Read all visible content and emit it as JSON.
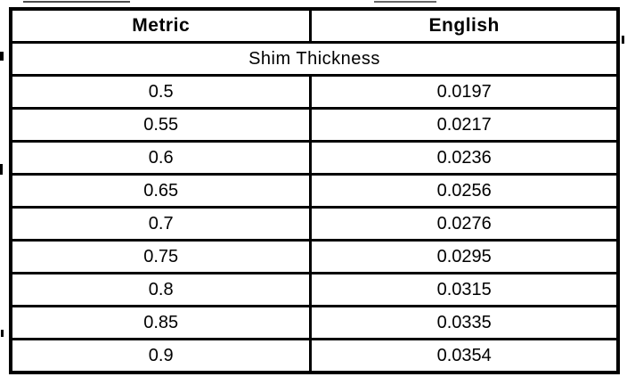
{
  "document": {
    "table": {
      "columns": [
        "Metric",
        "English"
      ],
      "section_title": "Shim Thickness",
      "rows": [
        {
          "metric": "0.5",
          "english": "0.0197"
        },
        {
          "metric": "0.55",
          "english": "0.0217"
        },
        {
          "metric": "0.6",
          "english": "0.0236"
        },
        {
          "metric": "0.65",
          "english": "0.0256"
        },
        {
          "metric": "0.7",
          "english": "0.0276"
        },
        {
          "metric": "0.75",
          "english": "0.0295"
        },
        {
          "metric": "0.8",
          "english": "0.0315"
        },
        {
          "metric": "0.85",
          "english": "0.0335"
        },
        {
          "metric": "0.9",
          "english": "0.0354"
        }
      ]
    },
    "colors": {
      "border": "#000000",
      "text": "#000000",
      "background": "#ffffff"
    }
  }
}
